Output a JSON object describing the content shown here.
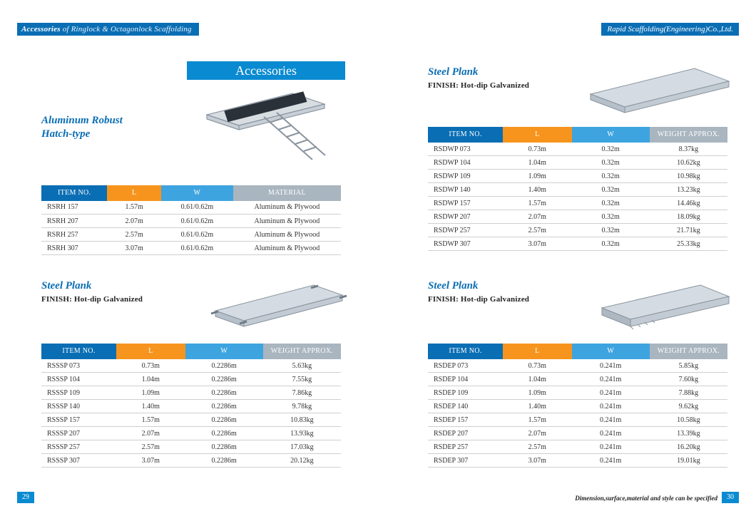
{
  "header": {
    "left_accent": "Accessories",
    "left_rest": " of  Ringlock & Octagonlock Scaffolding",
    "right": "Rapid Scaffolding(Engineering)Co.,Ltd."
  },
  "banner": "Accessories",
  "footer": {
    "page_left": "29",
    "page_right": "30",
    "note": "Dimension,surface,material and style can be specified"
  },
  "colors": {
    "brand_blue": "#0a6eb4",
    "banner_blue": "#0a8ad1",
    "th_orange": "#f7941d",
    "th_blue": "#3ea4e0",
    "th_grey": "#a9b5bf",
    "row_border": "#cfcfcf"
  },
  "table_columns": {
    "item": "ITEM NO.",
    "l": "L",
    "w": "W",
    "material": "MATERIAL",
    "weight": "WEIGHT APPROX."
  },
  "sections": {
    "a": {
      "title_line1": "Aluminum Robust",
      "title_line2": "Hatch-type",
      "columns": [
        "item",
        "l",
        "w",
        "material"
      ],
      "col_widths": [
        "22%",
        "18%",
        "24%",
        "36%"
      ],
      "rows": [
        {
          "item": "RSRH 157",
          "l": "1.57m",
          "w": "0.61/0.62m",
          "material": "Aluminum & Plywood"
        },
        {
          "item": "RSRH 207",
          "l": "2.07m",
          "w": "0.61/0.62m",
          "material": "Aluminum & Plywood"
        },
        {
          "item": "RSRH 257",
          "l": "2.57m",
          "w": "0.61/0.62m",
          "material": "Aluminum & Plywood"
        },
        {
          "item": "RSRH 307",
          "l": "3.07m",
          "w": "0.61/0.62m",
          "material": "Aluminum & Plywood"
        }
      ]
    },
    "b": {
      "title": "Steel Plank",
      "finish": "FINISH:  Hot-dip Galvanized",
      "columns": [
        "item",
        "l",
        "w",
        "weight"
      ],
      "col_widths": [
        "25%",
        "23%",
        "26%",
        "26%"
      ],
      "rows": [
        {
          "item": "RSSSP 073",
          "l": "0.73m",
          "w": "0.2286m",
          "weight": "5.63kg"
        },
        {
          "item": "RSSSP 104",
          "l": "1.04m",
          "w": "0.2286m",
          "weight": "7.55kg"
        },
        {
          "item": "RSSSP 109",
          "l": "1.09m",
          "w": "0.2286m",
          "weight": "7.86kg"
        },
        {
          "item": "RSSSP 140",
          "l": "1.40m",
          "w": "0.2286m",
          "weight": "9.78kg"
        },
        {
          "item": "RSSSP 157",
          "l": "1.57m",
          "w": "0.2286m",
          "weight": "10.83kg"
        },
        {
          "item": "RSSSP 207",
          "l": "2.07m",
          "w": "0.2286m",
          "weight": "13.93kg"
        },
        {
          "item": "RSSSP 257",
          "l": "2.57m",
          "w": "0.2286m",
          "weight": "17.03kg"
        },
        {
          "item": "RSSSP 307",
          "l": "3.07m",
          "w": "0.2286m",
          "weight": "20.12kg"
        }
      ]
    },
    "c": {
      "title": "Steel Plank",
      "finish": "FINISH:  Hot-dip Galvanized",
      "columns": [
        "item",
        "l",
        "w",
        "weight"
      ],
      "col_widths": [
        "25%",
        "23%",
        "26%",
        "26%"
      ],
      "rows": [
        {
          "item": "RSDWP 073",
          "l": "0.73m",
          "w": "0.32m",
          "weight": "8.37kg"
        },
        {
          "item": "RSDWP 104",
          "l": "1.04m",
          "w": "0.32m",
          "weight": "10.62kg"
        },
        {
          "item": "RSDWP 109",
          "l": "1.09m",
          "w": "0.32m",
          "weight": "10.98kg"
        },
        {
          "item": "RSDWP 140",
          "l": "1.40m",
          "w": "0.32m",
          "weight": "13.23kg"
        },
        {
          "item": "RSDWP 157",
          "l": "1.57m",
          "w": "0.32m",
          "weight": "14.46kg"
        },
        {
          "item": "RSDWP 207",
          "l": "2.07m",
          "w": "0.32m",
          "weight": "18.09kg"
        },
        {
          "item": "RSDWP 257",
          "l": "2.57m",
          "w": "0.32m",
          "weight": "21.71kg"
        },
        {
          "item": "RSDWP 307",
          "l": "3.07m",
          "w": "0.32m",
          "weight": "25.33kg"
        }
      ]
    },
    "d": {
      "title": "Steel Plank",
      "finish": "FINISH:  Hot-dip Galvanized",
      "columns": [
        "item",
        "l",
        "w",
        "weight"
      ],
      "col_widths": [
        "25%",
        "23%",
        "26%",
        "26%"
      ],
      "rows": [
        {
          "item": "RSDEP 073",
          "l": "0.73m",
          "w": "0.241m",
          "weight": "5.85kg"
        },
        {
          "item": "RSDEP 104",
          "l": "1.04m",
          "w": "0.241m",
          "weight": "7.60kg"
        },
        {
          "item": "RSDEP 109",
          "l": "1.09m",
          "w": "0.241m",
          "weight": "7.88kg"
        },
        {
          "item": "RSDEP 140",
          "l": "1.40m",
          "w": "0.241m",
          "weight": "9.62kg"
        },
        {
          "item": "RSDEP 157",
          "l": "1.57m",
          "w": "0.241m",
          "weight": "10.58kg"
        },
        {
          "item": "RSDEP 207",
          "l": "2.07m",
          "w": "0.241m",
          "weight": "13.39kg"
        },
        {
          "item": "RSDEP 257",
          "l": "2.57m",
          "w": "0.241m",
          "weight": "16.20kg"
        },
        {
          "item": "RSDEP 307",
          "l": "3.07m",
          "w": "0.241m",
          "weight": "19.01kg"
        }
      ]
    }
  }
}
